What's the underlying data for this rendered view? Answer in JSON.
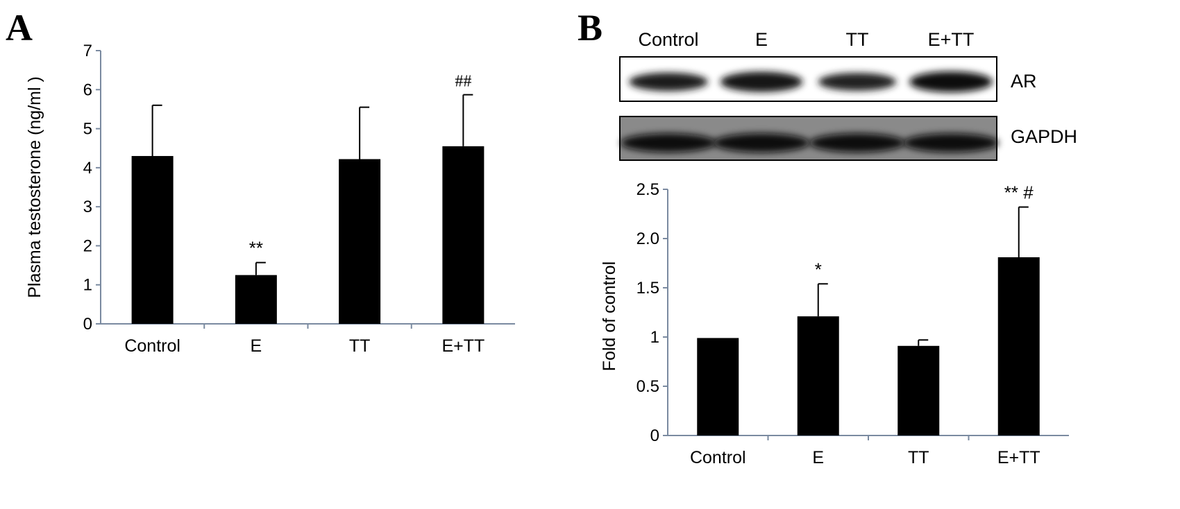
{
  "chart_data": [
    {
      "panel": "A",
      "type": "bar",
      "categories": [
        "Control",
        "E",
        "TT",
        "E+TT"
      ],
      "values": [
        4.3,
        1.25,
        4.22,
        4.55
      ],
      "error": [
        1.3,
        0.32,
        1.33,
        1.32
      ],
      "annotations": [
        "",
        "**",
        "",
        "##"
      ],
      "ylabel": "Plasma testosterone (ng/ml )",
      "ylim": [
        0,
        7
      ],
      "yticks": [
        "0",
        "1",
        "2",
        "3",
        "4",
        "5",
        "6",
        "7"
      ],
      "bar_color": "#000000"
    },
    {
      "panel": "B",
      "type": "bar",
      "categories": [
        "Control",
        "E",
        "TT",
        "E+TT"
      ],
      "values": [
        0.99,
        1.21,
        0.91,
        1.81
      ],
      "error": [
        0,
        0.33,
        0.06,
        0.51
      ],
      "annotations": [
        "",
        "*",
        "",
        "** #"
      ],
      "ylabel": "Fold of control",
      "ylim": [
        0,
        2.5
      ],
      "yticks": [
        "0",
        "0.5",
        "1",
        "1.5",
        "2.0",
        "2.5"
      ],
      "bar_color": "#000000"
    }
  ],
  "blot": {
    "lanes": [
      "Control",
      "E",
      "TT",
      "E+TT"
    ],
    "rows": [
      {
        "label": "AR",
        "intensity": [
          0.75,
          0.95,
          0.7,
          1.0
        ]
      },
      {
        "label": "GAPDH",
        "intensity": [
          0.9,
          0.95,
          0.9,
          0.88
        ]
      }
    ]
  }
}
